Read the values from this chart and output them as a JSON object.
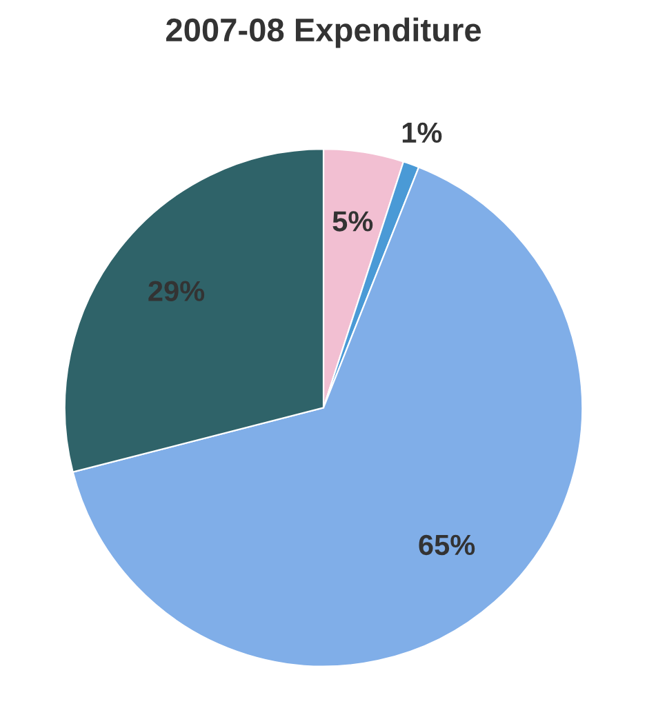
{
  "chart_data": {
    "type": "pie",
    "title": "2007-08 Expenditure",
    "categories": [
      null,
      null,
      null,
      null
    ],
    "values": [
      5,
      1,
      65,
      29
    ],
    "value_labels": [
      "5%",
      "1%",
      "65%",
      "29%"
    ],
    "colors": [
      "#f2bfd2",
      "#4a9ad6",
      "#80aee8",
      "#2f6369"
    ]
  }
}
